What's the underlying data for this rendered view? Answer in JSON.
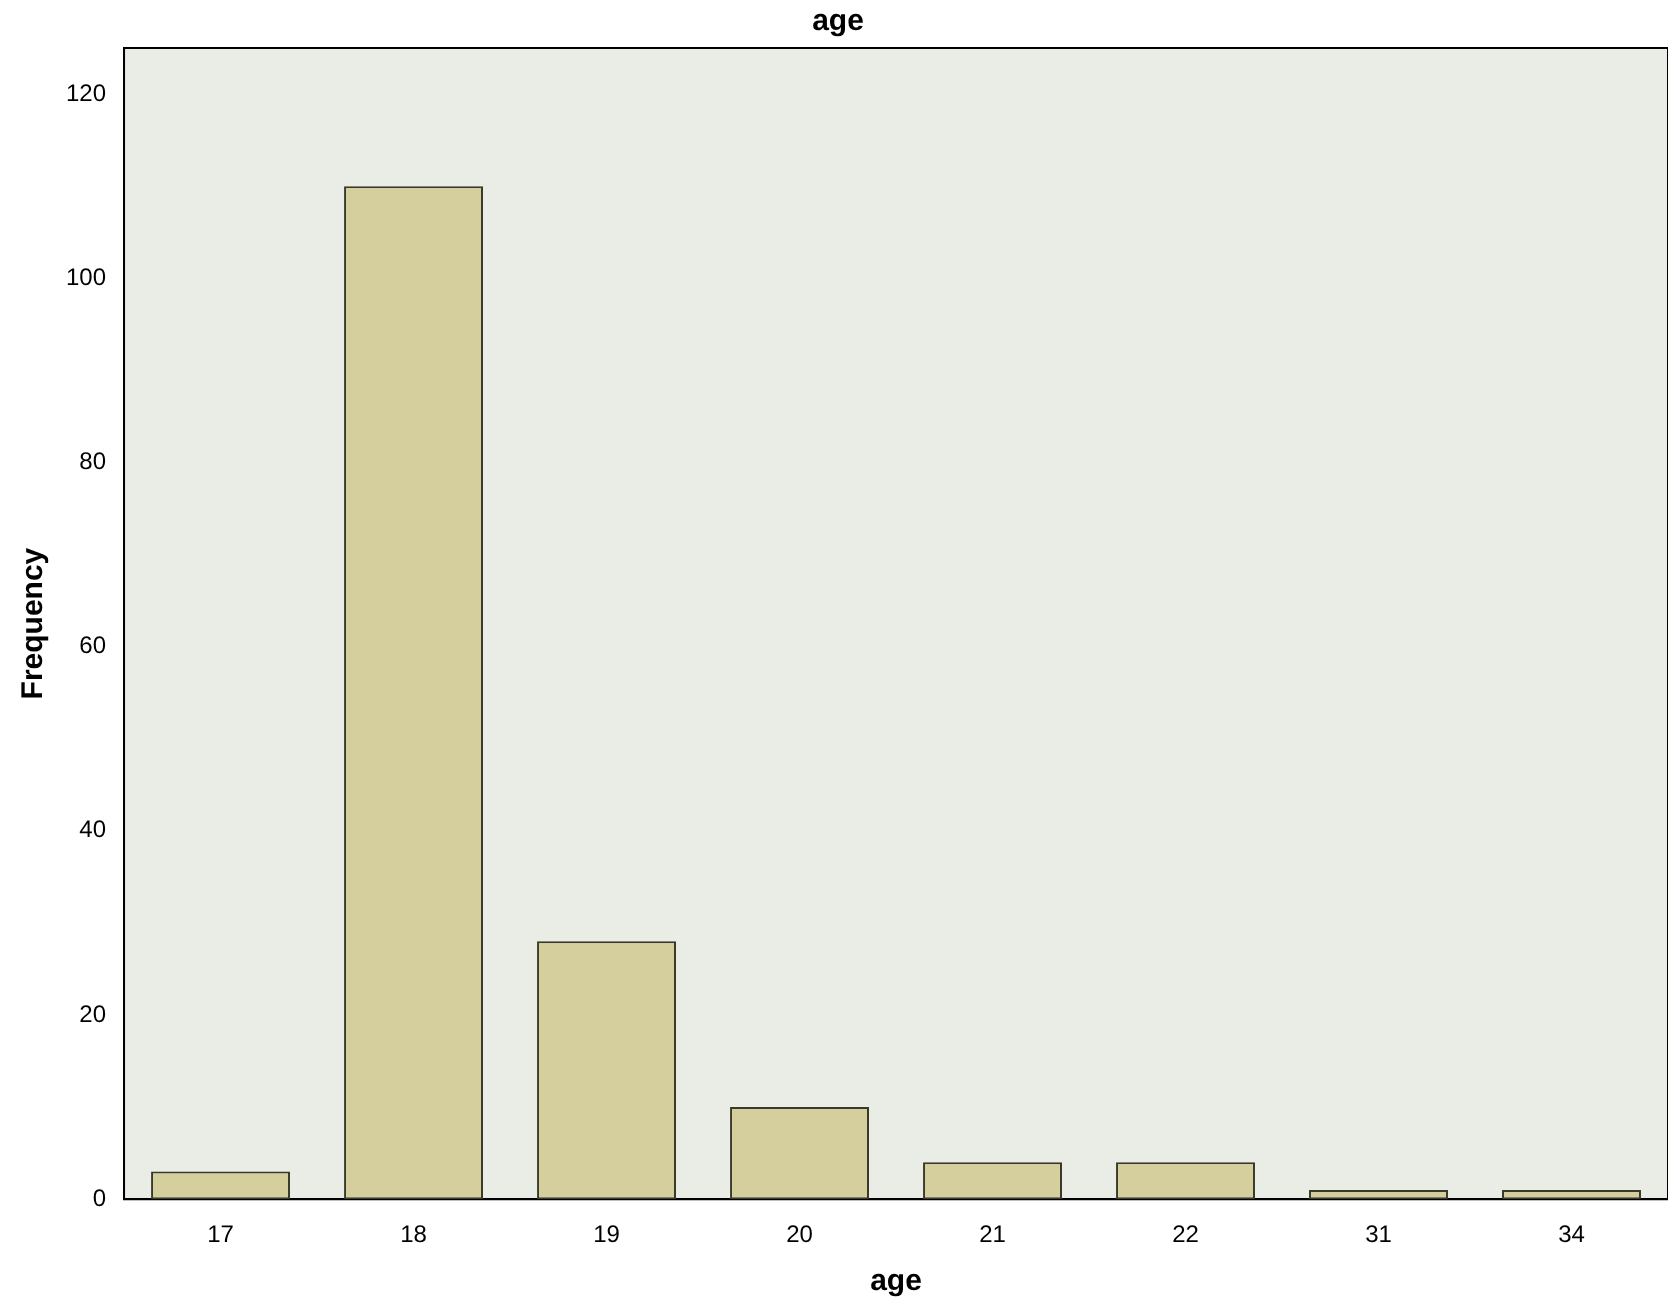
{
  "chart_data": {
    "type": "bar",
    "title": "age",
    "xlabel": "age",
    "ylabel": "Frequency",
    "categories": [
      "17",
      "18",
      "19",
      "20",
      "21",
      "22",
      "31",
      "34"
    ],
    "values": [
      3,
      110,
      28,
      10,
      4,
      4,
      1,
      1
    ],
    "color": "#d4cf9c",
    "ylim": [
      0,
      125
    ],
    "yticks": [
      0,
      20,
      40,
      60,
      80,
      100,
      120
    ],
    "grid": false,
    "legend": false
  }
}
